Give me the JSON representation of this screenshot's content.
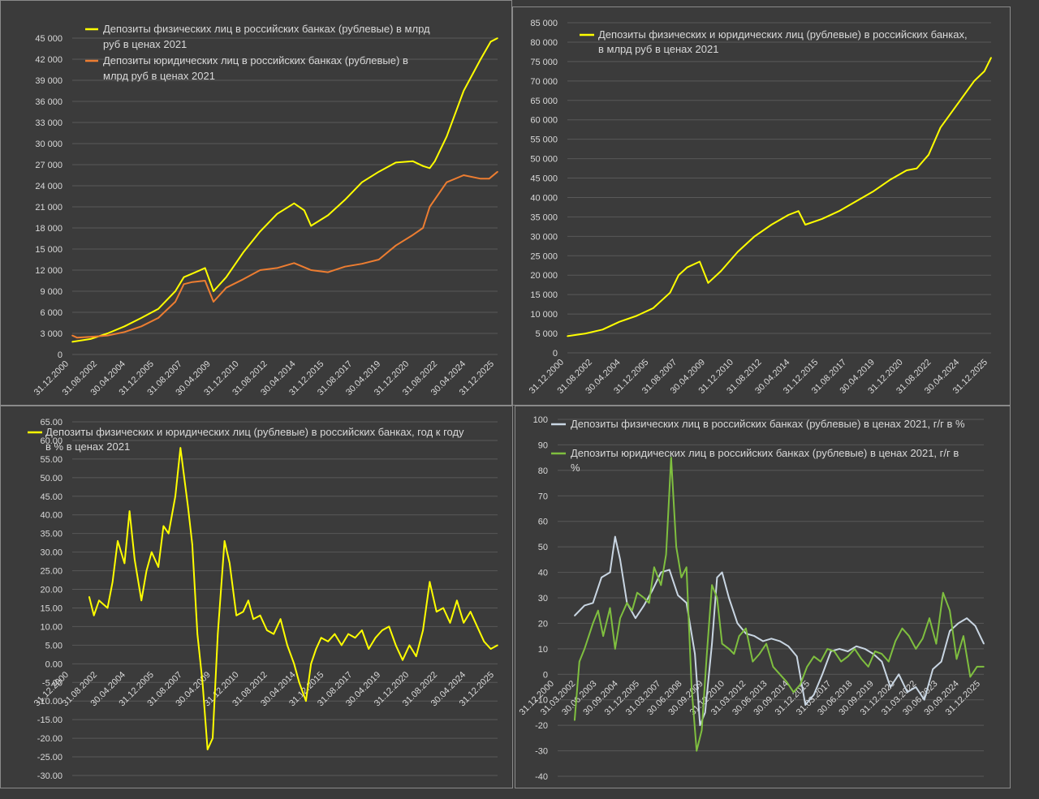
{
  "chart_data": [
    {
      "type": "line",
      "legend": [
        "Депозиты физических лиц в российских банках (рублевые) в млрд",
        "руб в ценах 2021",
        "Депозиты юридических лиц в российских банках (рублевые) в",
        "млрд руб в ценах 2021"
      ],
      "series": [
        {
          "name": "Депозиты физических лиц в российских банках (рублевые) в млрд руб в ценах 2021",
          "color": "#ffff00",
          "x": [
            2000.92,
            2002.0,
            2003.0,
            2004.0,
            2005.0,
            2006.0,
            2007.0,
            2007.5,
            2008.0,
            2008.75,
            2009.25,
            2010.0,
            2011.0,
            2012.0,
            2013.0,
            2014.0,
            2014.6,
            2015.0,
            2016.0,
            2017.0,
            2018.0,
            2019.0,
            2020.0,
            2021.0,
            2021.6,
            2022.0,
            2022.3,
            2023.0,
            2024.0,
            2025.0,
            2025.6,
            2026.0
          ],
          "values": [
            1800,
            2200,
            3000,
            4000,
            5200,
            6500,
            9000,
            11000,
            11500,
            12300,
            9000,
            11000,
            14500,
            17500,
            20000,
            21500,
            20500,
            18300,
            19800,
            22000,
            24500,
            26000,
            27300,
            27500,
            26800,
            26500,
            27500,
            31000,
            37500,
            42000,
            44500,
            45000
          ]
        },
        {
          "name": "Депозиты юридических лиц в российских банках (рублевые) в млрд руб в ценах 2021",
          "color": "#ed7d31",
          "x": [
            2000.92,
            2001.2,
            2002.0,
            2003.0,
            2004.0,
            2005.0,
            2006.0,
            2007.0,
            2007.5,
            2008.0,
            2008.75,
            2009.25,
            2010.0,
            2011.0,
            2012.0,
            2013.0,
            2014.0,
            2015.0,
            2016.0,
            2017.0,
            2018.0,
            2019.0,
            2020.0,
            2021.0,
            2021.6,
            2022.0,
            2023.0,
            2024.0,
            2025.0,
            2025.5,
            2026.0
          ],
          "values": [
            2700,
            2400,
            2500,
            2700,
            3200,
            4000,
            5200,
            7500,
            10000,
            10300,
            10500,
            7500,
            9500,
            10700,
            12000,
            12300,
            13000,
            12000,
            11700,
            12500,
            12900,
            13500,
            15500,
            17000,
            18000,
            21000,
            24500,
            25500,
            25000,
            25000,
            26000
          ]
        }
      ],
      "ylim": [
        0,
        45000
      ],
      "yticks": [
        "0",
        "3 000",
        "6 000",
        "9 000",
        "12 000",
        "15 000",
        "18 000",
        "21 000",
        "24 000",
        "27 000",
        "30 000",
        "33 000",
        "36 000",
        "39 000",
        "42 000",
        "45 000"
      ],
      "xticks": [
        "31.12.2000",
        "31.08.2002",
        "30.04.2004",
        "31.12.2005",
        "31.08.2007",
        "30.04.2009",
        "31.12.2010",
        "31.08.2012",
        "30.04.2014",
        "31.12.2015",
        "31.08.2017",
        "30.04.2019",
        "31.12.2020",
        "31.08.2022",
        "30.04.2024",
        "31.12.2025"
      ],
      "grid": true,
      "legend_position": "top-left"
    },
    {
      "type": "line",
      "legend": [
        "Депозиты физических и юридических лиц (рублевые) в российских банках,",
        "в млрд руб в ценах 2021"
      ],
      "series": [
        {
          "name": "Депозиты физических и юридических лиц (рублевые) в российских банках, в млрд руб в ценах 2021",
          "color": "#ffff00",
          "x": [
            2000.92,
            2002.0,
            2003.0,
            2004.0,
            2005.0,
            2006.0,
            2007.0,
            2007.5,
            2008.0,
            2008.75,
            2009.25,
            2010.0,
            2011.0,
            2012.0,
            2013.0,
            2014.0,
            2014.6,
            2015.0,
            2016.0,
            2017.0,
            2018.0,
            2019.0,
            2020.0,
            2021.0,
            2021.6,
            2022.0,
            2022.3,
            2023.0,
            2024.0,
            2025.0,
            2025.6,
            2026.0
          ],
          "values": [
            4300,
            5000,
            6000,
            8000,
            9500,
            11500,
            15500,
            20000,
            22000,
            23500,
            18000,
            21000,
            26000,
            30000,
            33000,
            35500,
            36500,
            33000,
            34500,
            36500,
            39000,
            41500,
            44500,
            47000,
            47500,
            49500,
            51000,
            58000,
            64000,
            70000,
            72500,
            76000
          ]
        }
      ],
      "ylim": [
        0,
        85000
      ],
      "yticks": [
        "0",
        "5 000",
        "10 000",
        "15 000",
        "20 000",
        "25 000",
        "30 000",
        "35 000",
        "40 000",
        "45 000",
        "50 000",
        "55 000",
        "60 000",
        "65 000",
        "70 000",
        "75 000",
        "80 000",
        "85 000"
      ],
      "xticks": [
        "31.12.2000",
        "31.08.2002",
        "30.04.2004",
        "31.12.2005",
        "31.08.2007",
        "30.04.2009",
        "31.12.2010",
        "31.08.2012",
        "30.04.2014",
        "31.12.2015",
        "31.08.2017",
        "30.04.2019",
        "31.12.2020",
        "31.08.2022",
        "30.04.2024",
        "31.12.2025"
      ],
      "grid": true,
      "legend_position": "top"
    },
    {
      "type": "line",
      "legend": [
        "Депозиты физических и юридических лиц (рублевые) в российских банках, год к году",
        "в % в ценах 2021"
      ],
      "series": [
        {
          "name": "Депозиты физических и юридических лиц (рублевые) в российских банках, год к году в % в ценах 2021",
          "color": "#ffff00",
          "x": [
            2001.92,
            2002.2,
            2002.5,
            2003.0,
            2003.3,
            2003.6,
            2004.0,
            2004.3,
            2004.6,
            2005.0,
            2005.3,
            2005.6,
            2006.0,
            2006.3,
            2006.6,
            2007.0,
            2007.3,
            2007.75,
            2008.0,
            2008.3,
            2008.6,
            2008.9,
            2009.2,
            2009.5,
            2009.9,
            2010.2,
            2010.6,
            2011.0,
            2011.3,
            2011.6,
            2012.0,
            2012.4,
            2012.8,
            2013.2,
            2013.6,
            2014.0,
            2014.3,
            2014.7,
            2015.0,
            2015.3,
            2015.6,
            2016.0,
            2016.4,
            2016.8,
            2017.2,
            2017.6,
            2018.0,
            2018.4,
            2018.8,
            2019.2,
            2019.6,
            2020.0,
            2020.4,
            2020.8,
            2021.2,
            2021.6,
            2022.0,
            2022.4,
            2022.8,
            2023.2,
            2023.6,
            2024.0,
            2024.4,
            2024.8,
            2025.2,
            2025.6,
            2026.0
          ],
          "values": [
            18,
            13,
            17,
            15,
            22,
            33,
            27,
            41,
            28,
            17,
            25,
            30,
            26,
            37,
            35,
            45,
            58,
            42,
            32,
            8,
            -5,
            -23,
            -20,
            8,
            33,
            27,
            13,
            14,
            17,
            12,
            13,
            9,
            8,
            12,
            5,
            0,
            -5,
            -10,
            0,
            4,
            7,
            6,
            8,
            5,
            8,
            7,
            9,
            4,
            7,
            9,
            10,
            5,
            1,
            5,
            2,
            9,
            22,
            14,
            15,
            11,
            17,
            11,
            14,
            10,
            6,
            4,
            5
          ]
        }
      ],
      "ylim": [
        -30,
        65
      ],
      "yticks": [
        "-30.00",
        "-25.00",
        "-20.00",
        "-15.00",
        "-10.00",
        "-5.00",
        "0.00",
        "5.00",
        "10.00",
        "15.00",
        "20.00",
        "25.00",
        "30.00",
        "35.00",
        "40.00",
        "45.00",
        "50.00",
        "55.00",
        "60.00",
        "65.00"
      ],
      "xticks": [
        "31.12.2000",
        "31.08.2002",
        "30.04.2004",
        "31.12.2005",
        "31.08.2007",
        "30.04.2009",
        "31.12.2010",
        "31.08.2012",
        "30.04.2014",
        "31.12.2015",
        "31.08.2017",
        "30.04.2019",
        "31.12.2020",
        "31.08.2022",
        "30.04.2024",
        "31.12.2025"
      ],
      "grid": true,
      "legend_position": "top"
    },
    {
      "type": "line",
      "legend": [
        "Депозиты физических лиц в российских банках (рублевые) в ценах 2021, г/г в %",
        "Депозиты юридических лиц в российских банках (рублевые) в ценах 2021, г/г в",
        "%"
      ],
      "series": [
        {
          "name": "Депозиты физических лиц в российских банках (рублевые) в ценах 2021, г/г в %",
          "color": "#c9d6e3",
          "x": [
            2001.92,
            2002.5,
            2003.0,
            2003.5,
            2004.0,
            2004.3,
            2004.6,
            2005.0,
            2005.5,
            2006.0,
            2006.5,
            2007.0,
            2007.5,
            2008.0,
            2008.5,
            2009.0,
            2009.3,
            2009.6,
            2010.0,
            2010.3,
            2010.6,
            2011.0,
            2011.5,
            2012.0,
            2012.5,
            2013.0,
            2013.5,
            2014.0,
            2014.5,
            2015.0,
            2015.5,
            2016.0,
            2016.5,
            2017.0,
            2017.5,
            2018.0,
            2018.5,
            2019.0,
            2019.5,
            2020.0,
            2020.5,
            2021.0,
            2021.5,
            2022.0,
            2022.5,
            2023.0,
            2023.5,
            2024.0,
            2024.5,
            2025.0,
            2025.5,
            2026.0
          ],
          "values": [
            23,
            27,
            28,
            38,
            40,
            54,
            45,
            28,
            22,
            27,
            33,
            40,
            41,
            31,
            28,
            8,
            -20,
            -15,
            12,
            38,
            40,
            30,
            20,
            16,
            15,
            13,
            14,
            13,
            11,
            7,
            -12,
            -8,
            0,
            9,
            10,
            9,
            11,
            10,
            8,
            5,
            -5,
            0,
            -7,
            -5,
            -10,
            2,
            5,
            17,
            20,
            22,
            19,
            12
          ]
        },
        {
          "name": "Депозиты юридических лиц в российских банках (рублевые) в ценах 2021, г/г в %",
          "color": "#7fbf3f",
          "x": [
            2001.92,
            2002.2,
            2002.5,
            2003.0,
            2003.3,
            2003.6,
            2004.0,
            2004.3,
            2004.6,
            2005.0,
            2005.3,
            2005.6,
            2006.0,
            2006.3,
            2006.6,
            2007.0,
            2007.3,
            2007.6,
            2007.9,
            2008.2,
            2008.5,
            2008.8,
            2009.1,
            2009.4,
            2009.7,
            2010.0,
            2010.3,
            2010.6,
            2011.0,
            2011.3,
            2011.6,
            2012.0,
            2012.4,
            2012.8,
            2013.2,
            2013.6,
            2014.0,
            2014.4,
            2014.8,
            2015.2,
            2015.6,
            2016.0,
            2016.4,
            2016.8,
            2017.2,
            2017.6,
            2018.0,
            2018.4,
            2018.8,
            2019.2,
            2019.6,
            2020.0,
            2020.4,
            2020.8,
            2021.2,
            2021.6,
            2022.0,
            2022.4,
            2022.8,
            2023.2,
            2023.6,
            2024.0,
            2024.4,
            2024.8,
            2025.2,
            2025.6,
            2026.0
          ],
          "values": [
            -18,
            5,
            10,
            20,
            25,
            15,
            26,
            10,
            22,
            28,
            25,
            32,
            30,
            28,
            42,
            35,
            47,
            85,
            50,
            38,
            42,
            -5,
            -30,
            -22,
            8,
            35,
            30,
            12,
            10,
            8,
            15,
            18,
            5,
            8,
            12,
            3,
            0,
            -3,
            -7,
            -4,
            3,
            7,
            5,
            10,
            9,
            5,
            7,
            10,
            6,
            3,
            9,
            8,
            5,
            13,
            18,
            15,
            10,
            14,
            22,
            12,
            32,
            25,
            6,
            15,
            -1,
            3,
            3
          ]
        }
      ],
      "ylim": [
        -40,
        100
      ],
      "yticks": [
        "-40",
        "-30",
        "-20",
        "-10",
        "0",
        "10",
        "20",
        "30",
        "40",
        "50",
        "60",
        "70",
        "80",
        "90",
        "100"
      ],
      "xticks": [
        "31.12.2000",
        "31.03.2002",
        "30.06.2003",
        "30.09.2004",
        "31.12.2005",
        "31.03.2007",
        "30.06.2008",
        "30.09.2009",
        "31.12.2010",
        "31.03.2012",
        "30.06.2013",
        "30.09.2014",
        "31.12.2015",
        "31.03.2017",
        "30.06.2018",
        "30.09.2019",
        "31.12.2020",
        "31.03.2022",
        "30.06.2023",
        "30.09.2024",
        "31.12.2025"
      ],
      "grid": true,
      "legend_position": "top"
    }
  ]
}
